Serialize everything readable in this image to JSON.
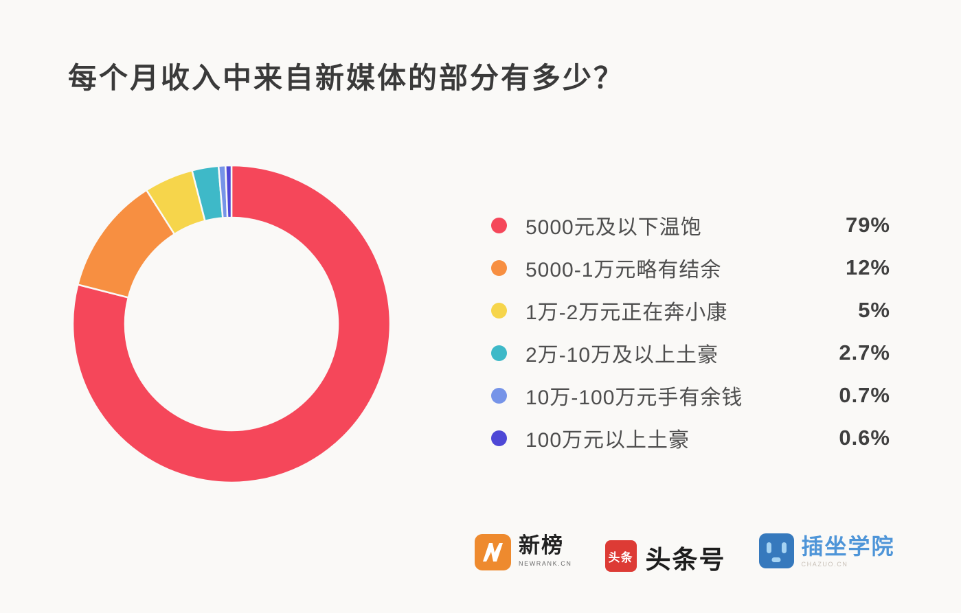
{
  "page": {
    "background": "#FAF9F7"
  },
  "title": "每个月收入中来自新媒体的部分有多少？",
  "chart_data": {
    "type": "pie",
    "donut": true,
    "title": "每个月收入中来自新媒体的部分有多少？",
    "direction": "clockwise",
    "start_angle_deg": 0,
    "legend_position": "right",
    "categories": [
      "5000元及以下温饱",
      "5000-1万元略有结余",
      "1万-2万元正在奔小康",
      "2万-10万及以上土豪",
      "10万-100万元手有余钱",
      "100万元以上土豪"
    ],
    "values": [
      79,
      12,
      5,
      2.7,
      0.7,
      0.6
    ],
    "unit": "%",
    "colors": [
      "#F5475A",
      "#F78F41",
      "#F6D54B",
      "#3EB9C8",
      "#7694E8",
      "#4E48D6"
    ]
  },
  "legend": {
    "items": [
      {
        "label": "5000元及以下温饱",
        "value": "79%",
        "color": "#F5475A"
      },
      {
        "label": "5000-1万元略有结余",
        "value": "12%",
        "color": "#F78F41"
      },
      {
        "label": "1万-2万元正在奔小康",
        "value": "5%",
        "color": "#F6D54B"
      },
      {
        "label": "2万-10万及以上土豪",
        "value": "2.7%",
        "color": "#3EB9C8"
      },
      {
        "label": "10万-100万元手有余钱",
        "value": "0.7%",
        "color": "#7694E8"
      },
      {
        "label": "100万元以上土豪",
        "value": "0.6%",
        "color": "#4E48D6"
      }
    ]
  },
  "footer": {
    "logos": [
      {
        "name": "newrank",
        "title": "新榜",
        "subtitle": "NEWRANK.CN",
        "brand_color": "#EE8A2E"
      },
      {
        "name": "toutiao",
        "title": "头条号",
        "icon_text": "头条",
        "brand_color": "#DD3B35"
      },
      {
        "name": "chazuo",
        "title": "插坐学院",
        "subtitle": "CHAZUO.CN",
        "brand_color": "#3679BD"
      }
    ]
  }
}
